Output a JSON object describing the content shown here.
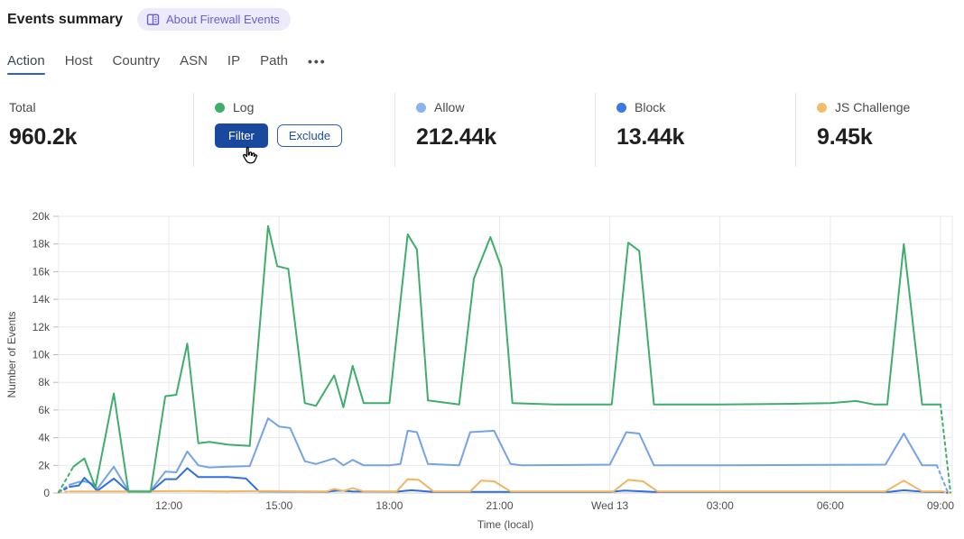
{
  "header": {
    "title": "Events summary",
    "about_link": "About Firewall Events"
  },
  "tabs": {
    "items": [
      {
        "label": "Action",
        "active": true
      },
      {
        "label": "Host"
      },
      {
        "label": "Country"
      },
      {
        "label": "ASN"
      },
      {
        "label": "IP"
      },
      {
        "label": "Path"
      }
    ],
    "overflow_label": "•••"
  },
  "stats": {
    "total": {
      "label": "Total",
      "value": "960.2k"
    },
    "cards": [
      {
        "label": "Log",
        "dot_color": "#41ad6b",
        "hovered": true,
        "actions": {
          "filter": "Filter",
          "exclude": "Exclude"
        }
      },
      {
        "label": "Allow",
        "dot_color": "#8ab3f0",
        "value": "212.44k"
      },
      {
        "label": "Block",
        "dot_color": "#3b7ae0",
        "value": "13.44k"
      },
      {
        "label": "JS Challenge",
        "dot_color": "#f3bd6b",
        "value": "9.45k"
      }
    ]
  },
  "mouse_cursor": {
    "over": "filter-button"
  },
  "chart_data": {
    "type": "line",
    "title": "",
    "xlabel": "Time (local)",
    "ylabel": "Number of Events",
    "x_unit": "hours after 09:00 (Tue) local time",
    "xlim": [
      0,
      24.3
    ],
    "ylim": [
      0,
      20000
    ],
    "grid": true,
    "legend_position": "stats-row-above-chart",
    "dashed_incomplete_ends": true,
    "y_ticks": [
      {
        "value": 0,
        "label": "0"
      },
      {
        "value": 2000,
        "label": "2k"
      },
      {
        "value": 4000,
        "label": "4k"
      },
      {
        "value": 6000,
        "label": "6k"
      },
      {
        "value": 8000,
        "label": "8k"
      },
      {
        "value": 10000,
        "label": "10k"
      },
      {
        "value": 12000,
        "label": "12k"
      },
      {
        "value": 14000,
        "label": "14k"
      },
      {
        "value": 16000,
        "label": "16k"
      },
      {
        "value": 18000,
        "label": "18k"
      },
      {
        "value": 20000,
        "label": "20k"
      }
    ],
    "x_ticks": [
      {
        "t": 3,
        "label": "12:00"
      },
      {
        "t": 6,
        "label": "15:00"
      },
      {
        "t": 9,
        "label": "18:00"
      },
      {
        "t": 12,
        "label": "21:00"
      },
      {
        "t": 15,
        "label": "Wed 13"
      },
      {
        "t": 18,
        "label": "03:00"
      },
      {
        "t": 21,
        "label": "06:00"
      },
      {
        "t": 24,
        "label": "09:00"
      }
    ],
    "series": [
      {
        "name": "Log",
        "color": "#3fae6c",
        "points": [
          [
            0,
            50
          ],
          [
            0.4,
            1900
          ],
          [
            0.7,
            2500
          ],
          [
            1.0,
            400
          ],
          [
            1.5,
            7200
          ],
          [
            1.9,
            100
          ],
          [
            2.5,
            100
          ],
          [
            2.9,
            7000
          ],
          [
            3.2,
            7100
          ],
          [
            3.5,
            10800
          ],
          [
            3.8,
            3600
          ],
          [
            4.1,
            3700
          ],
          [
            4.6,
            3500
          ],
          [
            5.2,
            3400
          ],
          [
            5.7,
            19300
          ],
          [
            5.95,
            16400
          ],
          [
            6.25,
            16200
          ],
          [
            6.7,
            6500
          ],
          [
            7.0,
            6300
          ],
          [
            7.5,
            8500
          ],
          [
            7.75,
            6200
          ],
          [
            8.0,
            9200
          ],
          [
            8.3,
            6500
          ],
          [
            9.0,
            6500
          ],
          [
            9.5,
            18700
          ],
          [
            9.75,
            17600
          ],
          [
            10.05,
            6700
          ],
          [
            10.9,
            6400
          ],
          [
            11.3,
            15500
          ],
          [
            11.75,
            18500
          ],
          [
            12.05,
            16300
          ],
          [
            12.35,
            6500
          ],
          [
            13.5,
            6400
          ],
          [
            15.05,
            6400
          ],
          [
            15.5,
            18100
          ],
          [
            15.8,
            17500
          ],
          [
            16.2,
            6400
          ],
          [
            18.0,
            6400
          ],
          [
            20.0,
            6450
          ],
          [
            21.0,
            6500
          ],
          [
            21.7,
            6650
          ],
          [
            22.2,
            6400
          ],
          [
            22.55,
            6400
          ],
          [
            23.0,
            18000
          ],
          [
            23.5,
            6400
          ],
          [
            24.0,
            6400
          ],
          [
            24.27,
            50
          ]
        ]
      },
      {
        "name": "Allow",
        "color": "#74a3e8",
        "points": [
          [
            0,
            100
          ],
          [
            0.3,
            600
          ],
          [
            0.55,
            800
          ],
          [
            0.7,
            850
          ],
          [
            0.9,
            700
          ],
          [
            1.05,
            300
          ],
          [
            1.5,
            1900
          ],
          [
            1.9,
            150
          ],
          [
            2.5,
            150
          ],
          [
            2.9,
            1550
          ],
          [
            3.2,
            1500
          ],
          [
            3.5,
            3000
          ],
          [
            3.8,
            2000
          ],
          [
            4.1,
            1850
          ],
          [
            4.6,
            1900
          ],
          [
            5.2,
            1950
          ],
          [
            5.7,
            5400
          ],
          [
            6.0,
            4800
          ],
          [
            6.3,
            4700
          ],
          [
            6.7,
            2300
          ],
          [
            7.0,
            2100
          ],
          [
            7.5,
            2500
          ],
          [
            7.75,
            2000
          ],
          [
            8.0,
            2400
          ],
          [
            8.3,
            2000
          ],
          [
            9.0,
            2000
          ],
          [
            9.3,
            2100
          ],
          [
            9.5,
            4500
          ],
          [
            9.75,
            4400
          ],
          [
            10.05,
            2100
          ],
          [
            10.9,
            2000
          ],
          [
            11.2,
            4400
          ],
          [
            11.85,
            4500
          ],
          [
            12.3,
            2100
          ],
          [
            12.6,
            2000
          ],
          [
            15.0,
            2050
          ],
          [
            15.45,
            4400
          ],
          [
            15.8,
            4300
          ],
          [
            16.2,
            2000
          ],
          [
            18.0,
            2000
          ],
          [
            22.5,
            2050
          ],
          [
            23.0,
            4300
          ],
          [
            23.5,
            2000
          ],
          [
            23.9,
            2000
          ],
          [
            24.2,
            50
          ]
        ]
      },
      {
        "name": "Block",
        "color": "#3170d8",
        "points": [
          [
            0,
            50
          ],
          [
            0.3,
            450
          ],
          [
            0.55,
            550
          ],
          [
            0.7,
            1100
          ],
          [
            0.9,
            600
          ],
          [
            1.05,
            150
          ],
          [
            1.5,
            1050
          ],
          [
            1.9,
            100
          ],
          [
            2.5,
            100
          ],
          [
            2.9,
            1000
          ],
          [
            3.2,
            1000
          ],
          [
            3.5,
            1800
          ],
          [
            3.8,
            1150
          ],
          [
            4.6,
            1150
          ],
          [
            5.1,
            1050
          ],
          [
            5.45,
            120
          ],
          [
            7.3,
            100
          ],
          [
            7.6,
            180
          ],
          [
            8.0,
            120
          ],
          [
            9.2,
            100
          ],
          [
            9.6,
            200
          ],
          [
            10.2,
            80
          ],
          [
            15.0,
            80
          ],
          [
            15.4,
            180
          ],
          [
            16.2,
            80
          ],
          [
            22.6,
            80
          ],
          [
            23.0,
            200
          ],
          [
            23.6,
            80
          ],
          [
            24.0,
            80
          ],
          [
            24.2,
            20
          ]
        ]
      },
      {
        "name": "JS Challenge",
        "color": "#f2b55f",
        "points": [
          [
            0,
            50
          ],
          [
            0.3,
            120
          ],
          [
            2.0,
            120
          ],
          [
            3.5,
            150
          ],
          [
            4.6,
            120
          ],
          [
            5.7,
            150
          ],
          [
            6.7,
            120
          ],
          [
            7.3,
            120
          ],
          [
            7.5,
            300
          ],
          [
            7.75,
            150
          ],
          [
            8.0,
            350
          ],
          [
            8.3,
            120
          ],
          [
            9.2,
            120
          ],
          [
            9.5,
            1000
          ],
          [
            9.8,
            950
          ],
          [
            10.2,
            120
          ],
          [
            11.2,
            120
          ],
          [
            11.5,
            900
          ],
          [
            11.85,
            850
          ],
          [
            12.3,
            120
          ],
          [
            15.1,
            120
          ],
          [
            15.5,
            950
          ],
          [
            15.9,
            850
          ],
          [
            16.3,
            120
          ],
          [
            22.5,
            120
          ],
          [
            23.0,
            900
          ],
          [
            23.5,
            120
          ],
          [
            24.05,
            120
          ],
          [
            24.25,
            20
          ]
        ]
      }
    ]
  }
}
